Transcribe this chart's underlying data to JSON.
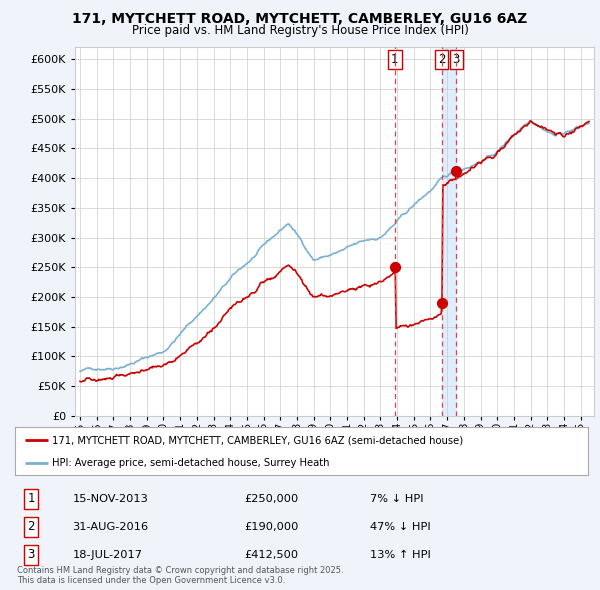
{
  "title": "171, MYTCHETT ROAD, MYTCHETT, CAMBERLEY, GU16 6AZ",
  "subtitle": "Price paid vs. HM Land Registry's House Price Index (HPI)",
  "red_label": "171, MYTCHETT ROAD, MYTCHETT, CAMBERLEY, GU16 6AZ (semi-detached house)",
  "blue_label": "HPI: Average price, semi-detached house, Surrey Heath",
  "footer": "Contains HM Land Registry data © Crown copyright and database right 2025.\nThis data is licensed under the Open Government Licence v3.0.",
  "transactions": [
    {
      "num": 1,
      "date": "15-NOV-2013",
      "date_dec": 2013.87,
      "price": 250000,
      "label": "7% ↓ HPI"
    },
    {
      "num": 2,
      "date": "31-AUG-2016",
      "date_dec": 2016.67,
      "price": 190000,
      "label": "47% ↓ HPI"
    },
    {
      "num": 3,
      "date": "18-JUL-2017",
      "date_dec": 2017.54,
      "price": 412500,
      "label": "13% ↑ HPI"
    }
  ],
  "ylim": [
    0,
    620000
  ],
  "yticks": [
    0,
    50000,
    100000,
    150000,
    200000,
    250000,
    300000,
    350000,
    400000,
    450000,
    500000,
    550000,
    600000
  ],
  "xlim_start": 1994.7,
  "xlim_end": 2025.8,
  "bg_color": "#f0f4fa",
  "plot_bg": "#ffffff",
  "grid_color": "#cccccc",
  "red_color": "#cc0000",
  "blue_color": "#7ab0d4",
  "vline_color": "#dd4444",
  "highlight_color": "#ddeeff",
  "hpi_base": 75000,
  "hpi_seed": 42
}
